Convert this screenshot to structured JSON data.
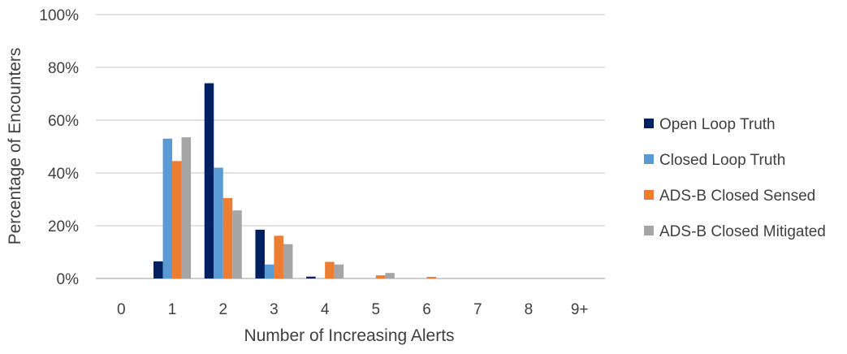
{
  "chart_data": {
    "type": "bar",
    "xlabel": "Number of Increasing Alerts",
    "ylabel": "Percentage of Encounters",
    "ylim": [
      0,
      100
    ],
    "y_ticks": [
      "0%",
      "20%",
      "40%",
      "60%",
      "80%",
      "100%"
    ],
    "y_tick_values": [
      0,
      20,
      40,
      60,
      80,
      100
    ],
    "categories": [
      "0",
      "1",
      "2",
      "3",
      "4",
      "5",
      "6",
      "7",
      "8",
      "9+"
    ],
    "series": [
      {
        "name": "Open Loop Truth",
        "color": "#002060",
        "values": [
          0,
          6.5,
          74,
          18.5,
          0.7,
          0,
          0,
          0,
          0,
          0
        ]
      },
      {
        "name": "Closed Loop Truth",
        "color": "#5b9bd5",
        "values": [
          0,
          53,
          42,
          5.3,
          0,
          0,
          0,
          0,
          0,
          0
        ]
      },
      {
        "name": "ADS-B Closed Sensed",
        "color": "#ed7d31",
        "values": [
          0,
          44.5,
          30.5,
          16.2,
          6.3,
          1.2,
          0.6,
          0,
          0,
          0
        ]
      },
      {
        "name": "ADS-B Closed Mitigated",
        "color": "#a5a5a5",
        "values": [
          0,
          53.5,
          25.8,
          13,
          5.3,
          2.1,
          0,
          0,
          0,
          0
        ]
      }
    ],
    "grid": true,
    "legend_position": "right"
  }
}
